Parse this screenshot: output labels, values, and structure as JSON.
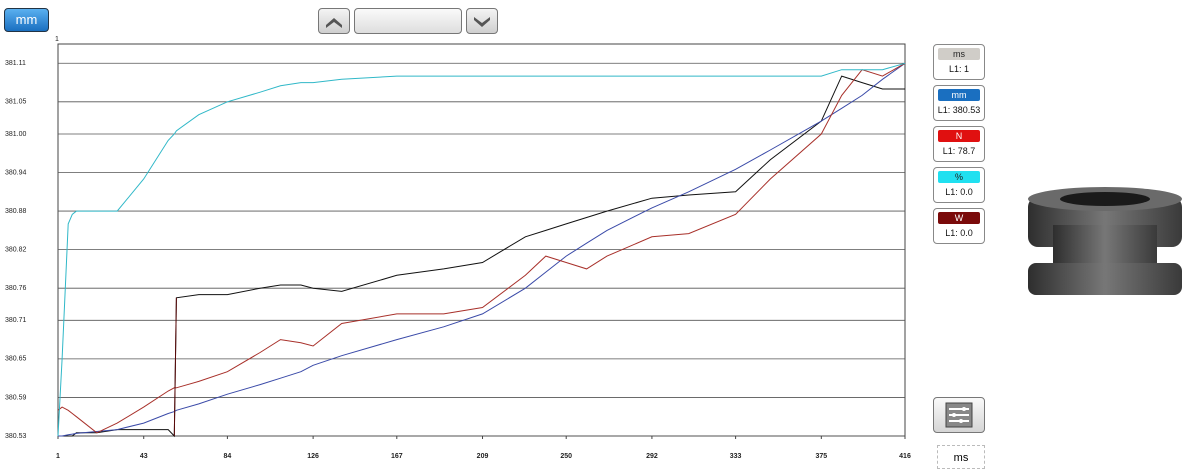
{
  "toolbar": {
    "unit_button": "mm"
  },
  "chart_data": {
    "type": "line",
    "corner_label": "1",
    "x": [
      1,
      3,
      6,
      8,
      10,
      20,
      30,
      43,
      55,
      58,
      59,
      70,
      84,
      100,
      110,
      120,
      126,
      140,
      167,
      190,
      209,
      230,
      240,
      250,
      260,
      270,
      292,
      310,
      333,
      350,
      375,
      385,
      395,
      405,
      416
    ],
    "xlim": [
      1,
      416
    ],
    "xticks": [
      1,
      43,
      84,
      126,
      167,
      209,
      250,
      292,
      333,
      375,
      416
    ],
    "ylim": [
      380.53,
      381.14
    ],
    "yticks": [
      380.53,
      380.59,
      380.65,
      380.71,
      380.76,
      380.82,
      380.88,
      380.94,
      {
        "value": 381.0,
        "label": "381.00"
      },
      381.05,
      381.11
    ],
    "grid": true,
    "series": [
      {
        "name": "ms",
        "reading": "L1: 1",
        "color": "#111111",
        "values": [
          380.53,
          380.53,
          380.53,
          380.53,
          380.535,
          380.535,
          380.54,
          380.54,
          380.54,
          380.53,
          380.745,
          380.75,
          380.75,
          380.76,
          380.765,
          380.765,
          380.76,
          380.755,
          380.78,
          380.79,
          380.8,
          380.84,
          380.85,
          380.86,
          380.87,
          380.88,
          380.9,
          380.905,
          380.91,
          380.96,
          381.02,
          381.09,
          381.08,
          381.07,
          381.07
        ]
      },
      {
        "name": "mm",
        "reading": "L1: 380.53",
        "color": "#3a4aa8",
        "values": [
          380.53,
          380.53,
          380.532,
          380.533,
          380.534,
          380.537,
          380.54,
          380.55,
          380.565,
          380.568,
          380.57,
          380.58,
          380.595,
          380.61,
          380.62,
          380.63,
          380.64,
          380.655,
          380.68,
          380.7,
          380.72,
          380.76,
          380.785,
          380.81,
          380.83,
          380.85,
          380.885,
          380.91,
          380.945,
          380.975,
          381.02,
          381.04,
          381.06,
          381.085,
          381.11
        ]
      },
      {
        "name": "N",
        "reading": "L1: 78.7",
        "color": "#a8302a",
        "values": [
          380.57,
          380.575,
          380.57,
          380.565,
          380.56,
          380.535,
          380.55,
          380.575,
          380.6,
          380.605,
          380.605,
          380.615,
          380.63,
          380.66,
          380.68,
          380.675,
          380.67,
          380.705,
          380.72,
          380.72,
          380.73,
          380.78,
          380.81,
          380.8,
          380.79,
          380.81,
          380.84,
          380.845,
          380.875,
          380.93,
          381.0,
          381.06,
          381.1,
          381.09,
          381.11
        ]
      },
      {
        "name": "%",
        "reading": "L1: 0.0",
        "color": "#30b8c8",
        "values": [
          380.53,
          380.65,
          380.86,
          380.875,
          380.88,
          380.88,
          380.88,
          380.93,
          380.99,
          381.0,
          381.005,
          381.03,
          381.05,
          381.065,
          381.075,
          381.08,
          381.08,
          381.085,
          381.09,
          381.09,
          381.09,
          381.09,
          381.09,
          381.09,
          381.09,
          381.09,
          381.09,
          381.09,
          381.09,
          381.09,
          381.09,
          381.1,
          381.1,
          381.1,
          381.11
        ]
      },
      {
        "name": "W",
        "reading": "L1: 0.0",
        "color": "#5a0a0a",
        "values": [
          null,
          null,
          null,
          null,
          null,
          null,
          null,
          null,
          null,
          380.53,
          380.745,
          null,
          null,
          null,
          null,
          null,
          null,
          null,
          null,
          null,
          null,
          null,
          null,
          null,
          null,
          null,
          null,
          null,
          null,
          null,
          null,
          null,
          null,
          null,
          null
        ]
      }
    ]
  },
  "x_unit_button": "ms"
}
